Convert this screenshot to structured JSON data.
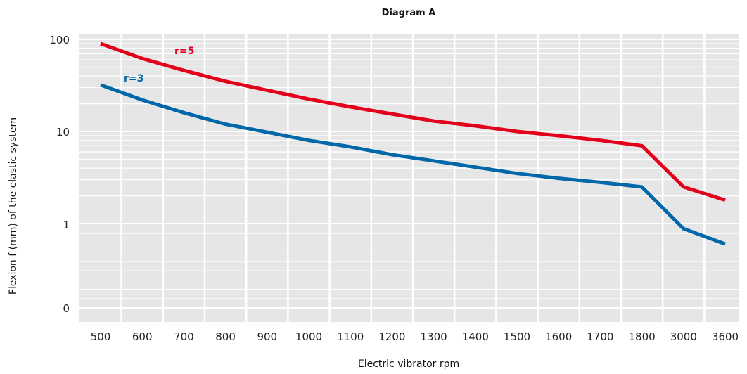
{
  "chart_data": {
    "type": "line",
    "title": "Diagram A",
    "xlabel": "Electric vibrator rpm",
    "ylabel": "Flexion f (mm) of the elastic system",
    "y_scale": "log",
    "y_tick_labels": [
      "0",
      "1",
      "10",
      "100"
    ],
    "grid": true,
    "categories": [
      "500",
      "600",
      "700",
      "800",
      "900",
      "1000",
      "1100",
      "1200",
      "1300",
      "1400",
      "1500",
      "1600",
      "1700",
      "1800",
      "3000",
      "3600"
    ],
    "series": [
      {
        "name": "r=5",
        "color": "#e2001a",
        "values": [
          90,
          62,
          46,
          35,
          28,
          22.5,
          18.5,
          15.5,
          13,
          11.5,
          10,
          9,
          8,
          7,
          2.5,
          1.8
        ]
      },
      {
        "name": "r=3",
        "color": "#0067a8",
        "values": [
          32,
          22,
          16,
          12,
          9.8,
          8,
          6.8,
          5.6,
          4.8,
          4.1,
          3.5,
          3.1,
          2.8,
          2.5,
          0.88,
          0.6
        ]
      }
    ]
  }
}
